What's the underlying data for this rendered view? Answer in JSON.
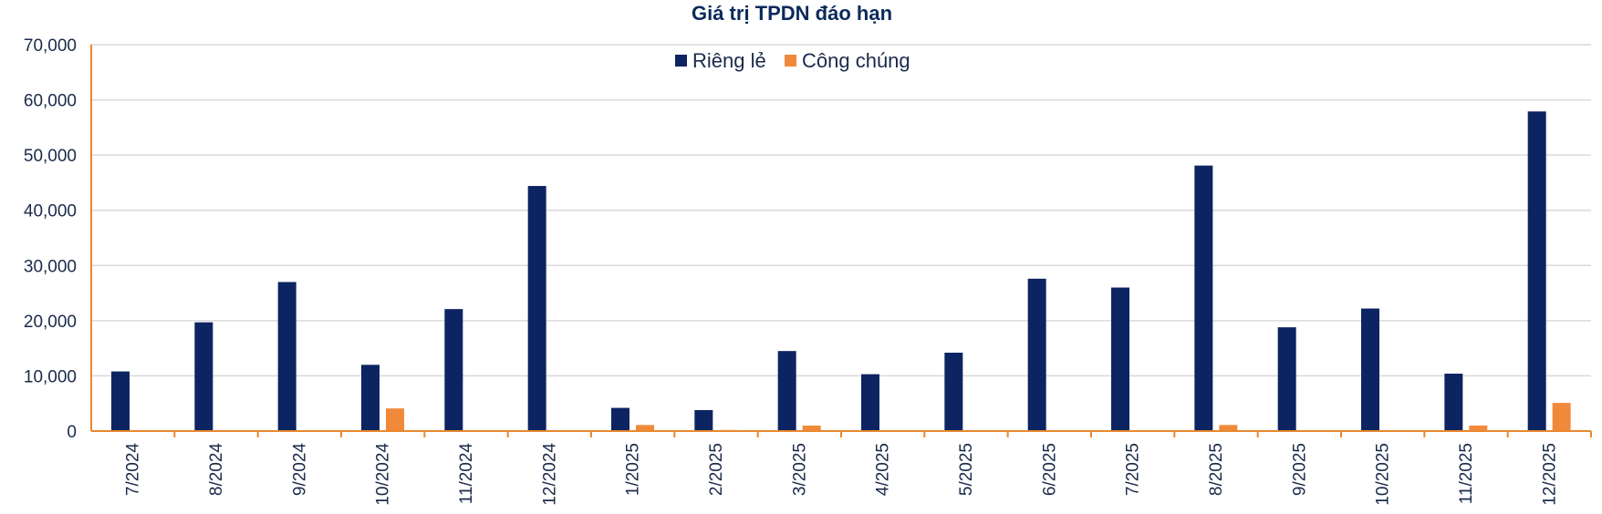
{
  "chart_data": {
    "type": "bar",
    "title": "Giá trị TPDN đáo hạn",
    "categories": [
      "7/2024",
      "8/2024",
      "9/2024",
      "10/2024",
      "11/2024",
      "12/2024",
      "1/2025",
      "2/2025",
      "3/2025",
      "4/2025",
      "5/2025",
      "6/2025",
      "7/2025",
      "8/2025",
      "9/2025",
      "10/2025",
      "11/2025",
      "12/2025"
    ],
    "series": [
      {
        "name": "Riêng lẻ",
        "color": "#0c2461",
        "values": [
          10800,
          19700,
          27000,
          12000,
          22100,
          44400,
          4200,
          3800,
          14500,
          10300,
          14200,
          27600,
          26000,
          48100,
          18800,
          22200,
          10400,
          57900
        ]
      },
      {
        "name": "Công chúng",
        "color": "#f08a3a",
        "values": [
          0,
          0,
          0,
          4100,
          0,
          0,
          1100,
          200,
          1000,
          0,
          0,
          0,
          0,
          1100,
          0,
          0,
          1000,
          5100
        ]
      }
    ],
    "yticks": [
      "0",
      "10,000",
      "20,000",
      "30,000",
      "40,000",
      "50,000",
      "60,000",
      "70,000"
    ],
    "ylim": [
      0,
      70000
    ],
    "grid": true,
    "legend_position": "top-center",
    "axis_color": "#e8882f",
    "grid_color": "#d9d9d9"
  }
}
